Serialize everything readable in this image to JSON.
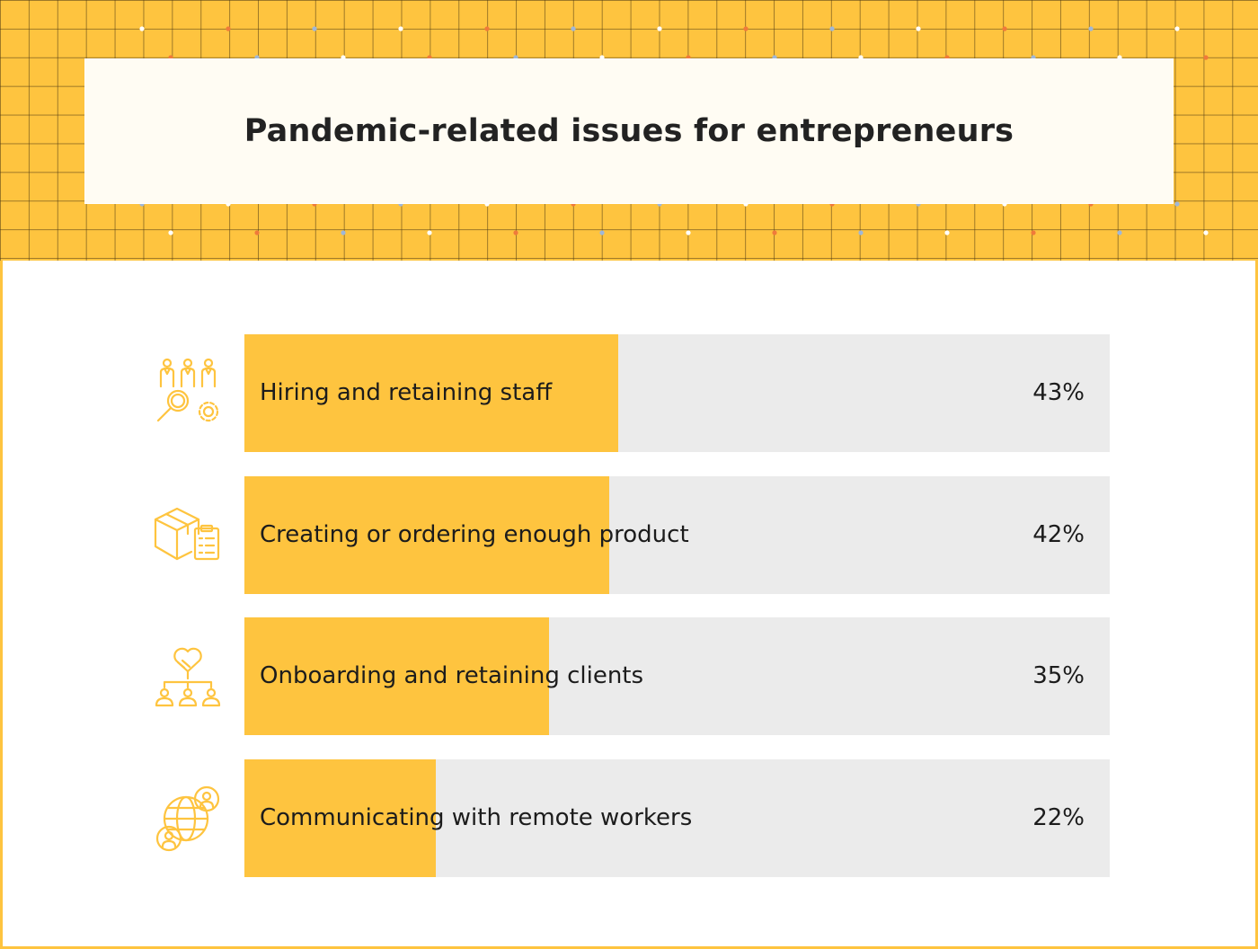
{
  "colors": {
    "accent": "#fec43f",
    "track": "#ebebeb",
    "title_box": "#fffcf3",
    "text": "#1c1c1c"
  },
  "chart_data": {
    "type": "bar",
    "orientation": "horizontal",
    "title": "Pandemic-related issues for entrepreneurs",
    "xlabel": "",
    "ylabel": "",
    "xlim": [
      0,
      100
    ],
    "unit": "%",
    "categories": [
      "Hiring and retaining staff",
      "Creating or ordering enough product",
      "Onboarding and retaining clients",
      "Communicating with remote workers"
    ],
    "values": [
      43,
      42,
      35,
      22
    ],
    "value_labels": [
      "43%",
      "42%",
      "35%",
      "22%"
    ],
    "icons": [
      "staff-search-icon",
      "product-box-icon",
      "client-handshake-icon",
      "remote-globe-icon"
    ]
  }
}
